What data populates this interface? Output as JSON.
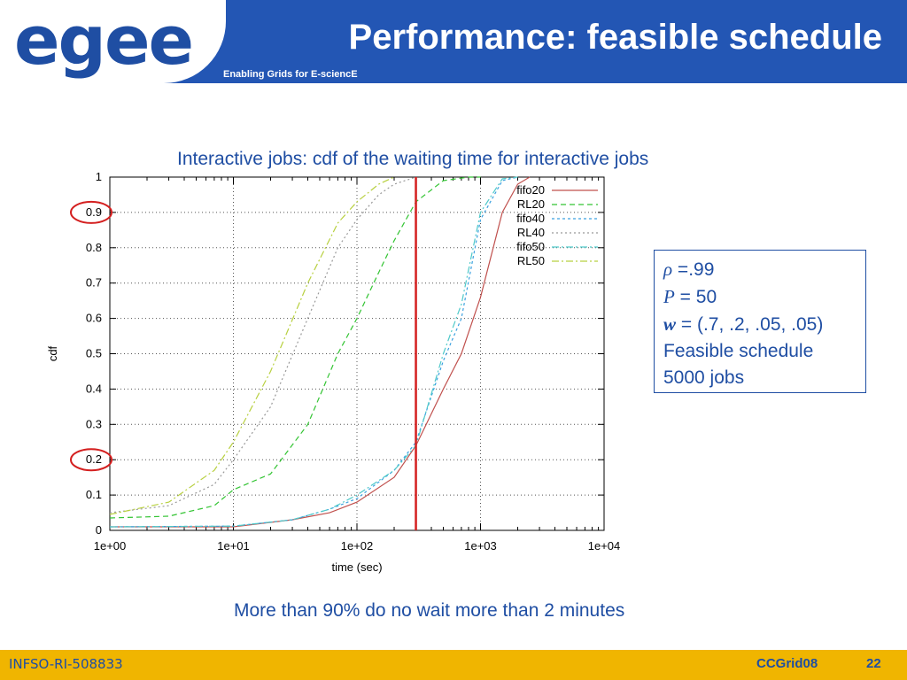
{
  "header": {
    "logo_text": "egee",
    "title": "Performance: feasible schedule",
    "subtitle": "Enabling Grids for E-sciencE"
  },
  "chart_title": "Interactive jobs: cdf of the waiting time for interactive jobs",
  "chart_data": {
    "type": "line",
    "title": "",
    "xlabel": "time (sec)",
    "ylabel": "cdf",
    "x_scale": "log",
    "xlim": [
      1,
      10000
    ],
    "ylim": [
      0,
      1
    ],
    "x_ticks": [
      1,
      10,
      100,
      1000,
      10000
    ],
    "x_tick_labels": [
      "1e+00",
      "1e+01",
      "1e+02",
      "1e+03",
      "1e+04"
    ],
    "y_ticks": [
      0,
      0.1,
      0.2,
      0.3,
      0.4,
      0.5,
      0.6,
      0.7,
      0.8,
      0.9,
      1
    ],
    "y_tick_labels": [
      "0",
      "0.1",
      "0.2",
      "0.3",
      "0.4",
      "0.5",
      "0.6",
      "0.7",
      "0.8",
      "0.9",
      "1"
    ],
    "grid": true,
    "legend_position": "top-right",
    "vertical_marker": {
      "x": 300,
      "color": "#d42020"
    },
    "circled_ticks": [
      0.9,
      0.2
    ],
    "series": [
      {
        "name": "fifo20",
        "color": "#c0504d",
        "dash": "",
        "x": [
          1,
          10,
          30,
          60,
          100,
          200,
          300,
          500,
          700,
          1000,
          1500,
          2000,
          2500
        ],
        "y": [
          0.01,
          0.01,
          0.03,
          0.05,
          0.08,
          0.15,
          0.24,
          0.4,
          0.5,
          0.66,
          0.9,
          0.98,
          1
        ]
      },
      {
        "name": "RL20",
        "color": "#33c433",
        "dash": "6,4",
        "x": [
          1,
          3,
          7,
          10,
          20,
          40,
          70,
          100,
          150,
          200,
          300,
          500,
          800,
          1000
        ],
        "y": [
          0.035,
          0.04,
          0.07,
          0.115,
          0.16,
          0.3,
          0.5,
          0.6,
          0.73,
          0.82,
          0.93,
          0.99,
          1,
          1
        ]
      },
      {
        "name": "fifo40",
        "color": "#3aa0e0",
        "dash": "3,3",
        "x": [
          1,
          10,
          30,
          60,
          100,
          200,
          300,
          500,
          700,
          1000,
          1500,
          2000
        ],
        "y": [
          0.01,
          0.012,
          0.03,
          0.06,
          0.09,
          0.17,
          0.25,
          0.48,
          0.6,
          0.88,
          0.99,
          1
        ]
      },
      {
        "name": "RL40",
        "color": "#999999",
        "dash": "2,3",
        "x": [
          1,
          3,
          7,
          10,
          20,
          40,
          70,
          100,
          150,
          200,
          300
        ],
        "y": [
          0.05,
          0.07,
          0.13,
          0.2,
          0.35,
          0.6,
          0.8,
          0.88,
          0.95,
          0.98,
          1
        ]
      },
      {
        "name": "fifo50",
        "color": "#4fc9c9",
        "dash": "8,3,2,3",
        "x": [
          1,
          10,
          30,
          60,
          100,
          200,
          300,
          500,
          700,
          1000,
          1500,
          2000
        ],
        "y": [
          0.01,
          0.012,
          0.03,
          0.06,
          0.1,
          0.17,
          0.24,
          0.5,
          0.64,
          0.9,
          0.995,
          1
        ]
      },
      {
        "name": "RL50",
        "color": "#b8d040",
        "dash": "8,3,2,3",
        "x": [
          1,
          3,
          7,
          10,
          20,
          40,
          70,
          100,
          150,
          200
        ],
        "y": [
          0.045,
          0.08,
          0.17,
          0.25,
          0.45,
          0.7,
          0.87,
          0.93,
          0.98,
          1
        ]
      }
    ]
  },
  "params": {
    "rho_symbol": "ρ",
    "rho_value": " =.99",
    "p_symbol": "P",
    "p_value": " = 50",
    "w_symbol": "w",
    "w_value": " = (.7, .2, .05, .05)",
    "line4": "Feasible schedule",
    "line5": "5000 jobs"
  },
  "caption": "More than 90% do no wait more than 2 minutes",
  "footer": {
    "project": "INFSO-RI-508833",
    "event": "CCGrid08",
    "page": "22"
  }
}
